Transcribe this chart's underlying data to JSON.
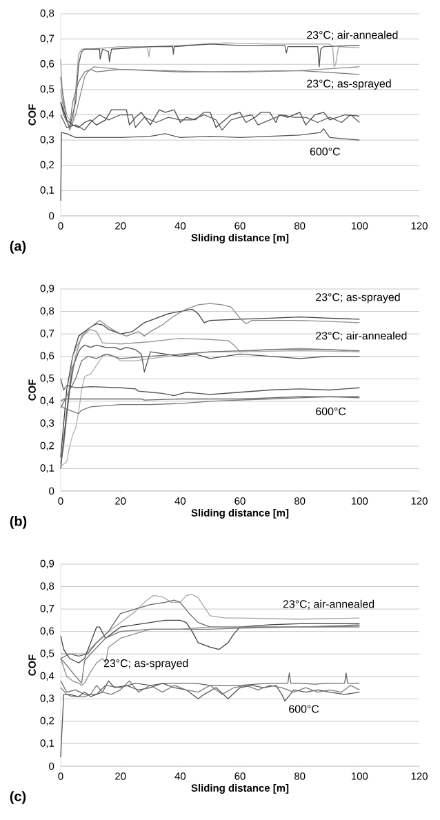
{
  "chart_data": [
    {
      "type": "line",
      "xlabel": "Sliding distance [m]",
      "ylabel": "COF",
      "xlim": [
        0,
        120
      ],
      "ylim": [
        0,
        0.8
      ],
      "xticks": [
        0,
        20,
        40,
        60,
        80,
        100,
        120
      ],
      "yticks": [
        {
          "value": 0,
          "label": "0"
        },
        {
          "value": 0.1,
          "label": "0,1"
        },
        {
          "value": 0.2,
          "label": "0,2"
        },
        {
          "value": 0.3,
          "label": "0,3"
        },
        {
          "value": 0.4,
          "label": "0,4"
        },
        {
          "value": 0.5,
          "label": "0,5"
        },
        {
          "value": 0.6,
          "label": "0,6"
        },
        {
          "value": 0.7,
          "label": "0,7"
        },
        {
          "value": 0.8,
          "label": "0,8"
        }
      ],
      "grid": "y",
      "series": [
        {
          "color": "#a6a6a6",
          "x": [
            0,
            0.5,
            2,
            4,
            5,
            6,
            7,
            10,
            20,
            29,
            29.5,
            30,
            40,
            55,
            70,
            80,
            90,
            91,
            91.5,
            92,
            93,
            100
          ],
          "values": [
            0.62,
            0.5,
            0.4,
            0.36,
            0.5,
            0.64,
            0.66,
            0.66,
            0.67,
            0.67,
            0.63,
            0.67,
            0.675,
            0.685,
            0.68,
            0.68,
            0.68,
            0.67,
            0.59,
            0.6,
            0.67,
            0.665
          ]
        },
        {
          "color": "#555555",
          "x": [
            0,
            1,
            3,
            5,
            6,
            7,
            8,
            13,
            13.2,
            14,
            16,
            16.3,
            17,
            30,
            37.5,
            37.7,
            38,
            50,
            60,
            75,
            75.5,
            76,
            86,
            86.5,
            87,
            88,
            100
          ],
          "values": [
            0.45,
            0.4,
            0.35,
            0.45,
            0.6,
            0.65,
            0.66,
            0.66,
            0.62,
            0.66,
            0.65,
            0.61,
            0.66,
            0.67,
            0.67,
            0.64,
            0.67,
            0.68,
            0.675,
            0.675,
            0.645,
            0.67,
            0.67,
            0.59,
            0.66,
            0.67,
            0.675
          ]
        },
        {
          "color": "#777777",
          "x": [
            0,
            1,
            2,
            3,
            4,
            6,
            8,
            10,
            12,
            20,
            40,
            60,
            80,
            100
          ],
          "values": [
            0.55,
            0.45,
            0.38,
            0.35,
            0.45,
            0.53,
            0.57,
            0.58,
            0.57,
            0.58,
            0.57,
            0.57,
            0.575,
            0.56
          ]
        },
        {
          "color": "#8c8c8c",
          "x": [
            0,
            1,
            3,
            5,
            7,
            8,
            9,
            11,
            20,
            50,
            80,
            100
          ],
          "values": [
            0.5,
            0.42,
            0.34,
            0.4,
            0.5,
            0.55,
            0.57,
            0.59,
            0.58,
            0.57,
            0.575,
            0.59
          ]
        },
        {
          "color": "#555555",
          "x": [
            0,
            0.3,
            2,
            5,
            10,
            20,
            30,
            35,
            40,
            50,
            60,
            70,
            80,
            87,
            88,
            90,
            95,
            100
          ],
          "values": [
            0.06,
            0.33,
            0.325,
            0.31,
            0.31,
            0.31,
            0.315,
            0.325,
            0.31,
            0.315,
            0.31,
            0.315,
            0.32,
            0.33,
            0.345,
            0.31,
            0.305,
            0.3
          ]
        },
        {
          "color": "#4a4a4a",
          "x": [
            0,
            2,
            4,
            6,
            8,
            10,
            12,
            15,
            17,
            22,
            23,
            25,
            27,
            30,
            33,
            35,
            38,
            40,
            42,
            45,
            48,
            50,
            52,
            55,
            57,
            60,
            62,
            65,
            67,
            70,
            72,
            73,
            76,
            80,
            82,
            85,
            88,
            90,
            95,
            100
          ],
          "values": [
            0.45,
            0.38,
            0.36,
            0.35,
            0.37,
            0.38,
            0.36,
            0.38,
            0.42,
            0.42,
            0.36,
            0.39,
            0.41,
            0.36,
            0.42,
            0.41,
            0.42,
            0.37,
            0.39,
            0.38,
            0.41,
            0.41,
            0.35,
            0.38,
            0.4,
            0.41,
            0.37,
            0.39,
            0.41,
            0.41,
            0.37,
            0.4,
            0.39,
            0.41,
            0.36,
            0.4,
            0.41,
            0.38,
            0.4,
            0.395
          ]
        },
        {
          "color": "#5a5a5a",
          "x": [
            0,
            2,
            5,
            8,
            10,
            13,
            16,
            20,
            24,
            25,
            28,
            32,
            36,
            40,
            44,
            48,
            52,
            54,
            57,
            60,
            64,
            66,
            70,
            74,
            78,
            82,
            86,
            90,
            94,
            97,
            100
          ],
          "values": [
            0.4,
            0.35,
            0.36,
            0.34,
            0.37,
            0.4,
            0.38,
            0.4,
            0.4,
            0.35,
            0.39,
            0.37,
            0.39,
            0.38,
            0.38,
            0.4,
            0.38,
            0.34,
            0.38,
            0.39,
            0.4,
            0.36,
            0.38,
            0.4,
            0.39,
            0.39,
            0.37,
            0.39,
            0.37,
            0.4,
            0.37
          ]
        }
      ],
      "annotations": [
        "(a)",
        "23°C; air-annealed",
        "23°C; as-sprayed",
        "600°C"
      ]
    },
    {
      "type": "line",
      "xlabel": "Sliding distance [m]",
      "ylabel": "COF",
      "xlim": [
        0,
        120
      ],
      "ylim": [
        0,
        0.9
      ],
      "xticks": [
        0,
        20,
        40,
        60,
        80,
        100,
        120
      ],
      "yticks": [
        {
          "value": 0,
          "label": "0"
        },
        {
          "value": 0.1,
          "label": "0,1"
        },
        {
          "value": 0.2,
          "label": "0,2"
        },
        {
          "value": 0.3,
          "label": "0,3"
        },
        {
          "value": 0.4,
          "label": "0,4"
        },
        {
          "value": 0.5,
          "label": "0,5"
        },
        {
          "value": 0.6,
          "label": "0,6"
        },
        {
          "value": 0.7,
          "label": "0,7"
        },
        {
          "value": 0.8,
          "label": "0,8"
        },
        {
          "value": 0.9,
          "label": "0,9"
        }
      ],
      "grid": "y",
      "series": [
        {
          "color": "#404040",
          "x": [
            0,
            1,
            2,
            4,
            6,
            8,
            10,
            12,
            14,
            16,
            20,
            24,
            28,
            32,
            36,
            40,
            44,
            46,
            48,
            50,
            60,
            70,
            80,
            90,
            100
          ],
          "values": [
            0.15,
            0.3,
            0.45,
            0.6,
            0.69,
            0.71,
            0.73,
            0.745,
            0.74,
            0.72,
            0.7,
            0.71,
            0.75,
            0.77,
            0.79,
            0.8,
            0.81,
            0.79,
            0.75,
            0.76,
            0.765,
            0.77,
            0.775,
            0.77,
            0.765
          ]
        },
        {
          "color": "#8c8c8c",
          "x": [
            0,
            1,
            3,
            5,
            7,
            10,
            13,
            16,
            20,
            22,
            26,
            28,
            30,
            34,
            38,
            42,
            46,
            50,
            54,
            57,
            60,
            62,
            64,
            70,
            80,
            90,
            100
          ],
          "values": [
            0.12,
            0.2,
            0.45,
            0.6,
            0.69,
            0.73,
            0.76,
            0.73,
            0.7,
            0.69,
            0.71,
            0.69,
            0.71,
            0.74,
            0.78,
            0.81,
            0.83,
            0.835,
            0.83,
            0.82,
            0.77,
            0.745,
            0.76,
            0.76,
            0.76,
            0.755,
            0.75
          ]
        },
        {
          "color": "#999999",
          "x": [
            0,
            2,
            4,
            6,
            8,
            10,
            12,
            14,
            20,
            30,
            40,
            50,
            56,
            58,
            60,
            70,
            80,
            90,
            100
          ],
          "values": [
            0.12,
            0.35,
            0.6,
            0.66,
            0.7,
            0.72,
            0.71,
            0.66,
            0.655,
            0.665,
            0.68,
            0.675,
            0.67,
            0.65,
            0.62,
            0.63,
            0.635,
            0.63,
            0.62
          ]
        },
        {
          "color": "#b0b0b0",
          "x": [
            0,
            1,
            2,
            3,
            4,
            5,
            6,
            7,
            8,
            10,
            12,
            14,
            16,
            18,
            20,
            25,
            30,
            40,
            50,
            60,
            80,
            100
          ],
          "values": [
            0.11,
            0.12,
            0.13,
            0.2,
            0.25,
            0.28,
            0.35,
            0.45,
            0.51,
            0.52,
            0.56,
            0.6,
            0.61,
            0.6,
            0.58,
            0.58,
            0.59,
            0.605,
            0.62,
            0.62,
            0.625,
            0.62
          ]
        },
        {
          "color": "#505050",
          "x": [
            0,
            2,
            4,
            6,
            7,
            8,
            10,
            12,
            15,
            18,
            20,
            22,
            25,
            27,
            28,
            30,
            35,
            40,
            45,
            50,
            55,
            60,
            70,
            80,
            90,
            100
          ],
          "values": [
            0.1,
            0.35,
            0.55,
            0.62,
            0.64,
            0.65,
            0.64,
            0.65,
            0.64,
            0.64,
            0.63,
            0.64,
            0.63,
            0.61,
            0.53,
            0.62,
            0.61,
            0.6,
            0.61,
            0.59,
            0.6,
            0.61,
            0.6,
            0.59,
            0.6,
            0.6
          ]
        },
        {
          "color": "#6e6e6e",
          "x": [
            0,
            3,
            5,
            7,
            9,
            12,
            15,
            20,
            30,
            40,
            50,
            60,
            70,
            80,
            90,
            100
          ],
          "values": [
            0.37,
            0.45,
            0.5,
            0.58,
            0.6,
            0.59,
            0.61,
            0.59,
            0.6,
            0.61,
            0.62,
            0.625,
            0.63,
            0.63,
            0.63,
            0.625
          ]
        },
        {
          "color": "#555555",
          "x": [
            0,
            1,
            2,
            5,
            10,
            20,
            25,
            26,
            30,
            34,
            38,
            42,
            46,
            50,
            60,
            70,
            80,
            90,
            100
          ],
          "values": [
            0.5,
            0.45,
            0.47,
            0.46,
            0.465,
            0.46,
            0.455,
            0.445,
            0.44,
            0.435,
            0.425,
            0.44,
            0.435,
            0.43,
            0.44,
            0.45,
            0.455,
            0.45,
            0.46
          ]
        },
        {
          "color": "#666666",
          "x": [
            0,
            1,
            3,
            10,
            20,
            27,
            28,
            40,
            50,
            60,
            70,
            80,
            90,
            100
          ],
          "values": [
            0.4,
            0.41,
            0.41,
            0.41,
            0.41,
            0.41,
            0.405,
            0.41,
            0.41,
            0.41,
            0.415,
            0.42,
            0.42,
            0.415
          ]
        },
        {
          "color": "#777777",
          "x": [
            0,
            1,
            3,
            5,
            6,
            7,
            10,
            15,
            20,
            30,
            40,
            50,
            60,
            70,
            80,
            90,
            100
          ],
          "values": [
            0.38,
            0.37,
            0.36,
            0.35,
            0.345,
            0.36,
            0.375,
            0.38,
            0.385,
            0.385,
            0.39,
            0.4,
            0.405,
            0.41,
            0.415,
            0.42,
            0.42
          ]
        }
      ],
      "annotations": [
        "(b)",
        "23°C; as-sprayed",
        "23°C; air-annealed",
        "600°C"
      ]
    },
    {
      "type": "line",
      "xlabel": "Sliding distance [m]",
      "ylabel": "COF",
      "xlim": [
        0,
        120
      ],
      "ylim": [
        0,
        0.9
      ],
      "xticks": [
        0,
        20,
        40,
        60,
        80,
        100,
        120
      ],
      "yticks": [
        {
          "value": 0,
          "label": "0"
        },
        {
          "value": 0.1,
          "label": "0,1"
        },
        {
          "value": 0.2,
          "label": "0,2"
        },
        {
          "value": 0.3,
          "label": "0,3"
        },
        {
          "value": 0.4,
          "label": "0,4"
        },
        {
          "value": 0.5,
          "label": "0,5"
        },
        {
          "value": 0.6,
          "label": "0,6"
        },
        {
          "value": 0.7,
          "label": "0,7"
        },
        {
          "value": 0.8,
          "label": "0,8"
        },
        {
          "value": 0.9,
          "label": "0,9"
        }
      ],
      "grid": "y",
      "series": [
        {
          "color": "#a6a6a6",
          "x": [
            0,
            2,
            5,
            8,
            12,
            16,
            20,
            25,
            28,
            31,
            34,
            37,
            40,
            42,
            44,
            46,
            48,
            50,
            55,
            60,
            80,
            100
          ],
          "values": [
            0.5,
            0.5,
            0.5,
            0.5,
            0.55,
            0.6,
            0.64,
            0.69,
            0.73,
            0.76,
            0.755,
            0.73,
            0.73,
            0.76,
            0.765,
            0.75,
            0.71,
            0.67,
            0.66,
            0.66,
            0.655,
            0.66
          ]
        },
        {
          "color": "#404040",
          "x": [
            0,
            1,
            3,
            6,
            8,
            10,
            12,
            13,
            15,
            18,
            20,
            25,
            30,
            35,
            40,
            42,
            44,
            46,
            50,
            53,
            56,
            58,
            60,
            70,
            80,
            100
          ],
          "values": [
            0.58,
            0.52,
            0.48,
            0.46,
            0.48,
            0.55,
            0.62,
            0.62,
            0.57,
            0.6,
            0.62,
            0.63,
            0.64,
            0.65,
            0.65,
            0.64,
            0.6,
            0.55,
            0.53,
            0.52,
            0.55,
            0.59,
            0.62,
            0.63,
            0.635,
            0.635
          ]
        },
        {
          "color": "#666666",
          "x": [
            0,
            3,
            6,
            9,
            12,
            16,
            20,
            25,
            30,
            35,
            38,
            40,
            43,
            46,
            50,
            60,
            80,
            100
          ],
          "values": [
            0.48,
            0.5,
            0.49,
            0.5,
            0.55,
            0.6,
            0.68,
            0.7,
            0.72,
            0.73,
            0.74,
            0.73,
            0.68,
            0.64,
            0.62,
            0.62,
            0.62,
            0.625
          ]
        },
        {
          "color": "#8c8c8c",
          "x": [
            0,
            2,
            4,
            6,
            7,
            8,
            10,
            12,
            14,
            15,
            16,
            20,
            25,
            30,
            40,
            50,
            60,
            80,
            100
          ],
          "values": [
            0.48,
            0.4,
            0.38,
            0.37,
            0.36,
            0.37,
            0.42,
            0.46,
            0.48,
            0.46,
            0.53,
            0.57,
            0.59,
            0.61,
            0.61,
            0.62,
            0.62,
            0.62,
            0.63
          ]
        },
        {
          "color": "#777777",
          "x": [
            0,
            2,
            5,
            7,
            8,
            10,
            15,
            20,
            30,
            40,
            50,
            60,
            80,
            100
          ],
          "values": [
            0.48,
            0.45,
            0.4,
            0.37,
            0.47,
            0.5,
            0.57,
            0.6,
            0.61,
            0.61,
            0.61,
            0.615,
            0.62,
            0.62
          ]
        },
        {
          "color": "#555555",
          "x": [
            0,
            1,
            3,
            6,
            8,
            10,
            14,
            16,
            18,
            22,
            26,
            30,
            34,
            38,
            42,
            46,
            48,
            52,
            56,
            60,
            64,
            68,
            72,
            74,
            75,
            78,
            82,
            86,
            90,
            95,
            100
          ],
          "values": [
            0.04,
            0.32,
            0.32,
            0.31,
            0.33,
            0.31,
            0.33,
            0.38,
            0.35,
            0.36,
            0.34,
            0.35,
            0.37,
            0.35,
            0.34,
            0.3,
            0.32,
            0.35,
            0.3,
            0.35,
            0.36,
            0.35,
            0.36,
            0.32,
            0.29,
            0.34,
            0.33,
            0.34,
            0.33,
            0.32,
            0.33
          ]
        },
        {
          "color": "#666666",
          "x": [
            0,
            2,
            5,
            8,
            12,
            15,
            20,
            25,
            30,
            35,
            40,
            45,
            50,
            55,
            60,
            65,
            70,
            76,
            76.5,
            77,
            80,
            85,
            90,
            95,
            95.5,
            96,
            100
          ],
          "values": [
            0.38,
            0.33,
            0.34,
            0.32,
            0.32,
            0.36,
            0.35,
            0.37,
            0.36,
            0.37,
            0.37,
            0.37,
            0.36,
            0.36,
            0.36,
            0.365,
            0.37,
            0.37,
            0.415,
            0.37,
            0.37,
            0.365,
            0.37,
            0.37,
            0.415,
            0.37,
            0.37
          ]
        },
        {
          "color": "#7a7a7a",
          "x": [
            0,
            2,
            4,
            8,
            10,
            12,
            14,
            17,
            20,
            23,
            26,
            30,
            34,
            38,
            42,
            46,
            50,
            54,
            58,
            62,
            66,
            70,
            74,
            78,
            82,
            86,
            90,
            94,
            97,
            100
          ],
          "values": [
            0.35,
            0.32,
            0.31,
            0.31,
            0.32,
            0.36,
            0.33,
            0.32,
            0.34,
            0.38,
            0.33,
            0.36,
            0.33,
            0.36,
            0.34,
            0.33,
            0.36,
            0.32,
            0.35,
            0.36,
            0.34,
            0.36,
            0.35,
            0.33,
            0.35,
            0.33,
            0.34,
            0.33,
            0.36,
            0.34
          ]
        }
      ],
      "annotations": [
        "(c)",
        "23°C; air-annealed",
        "23°C; as-sprayed",
        "600°C"
      ]
    }
  ]
}
